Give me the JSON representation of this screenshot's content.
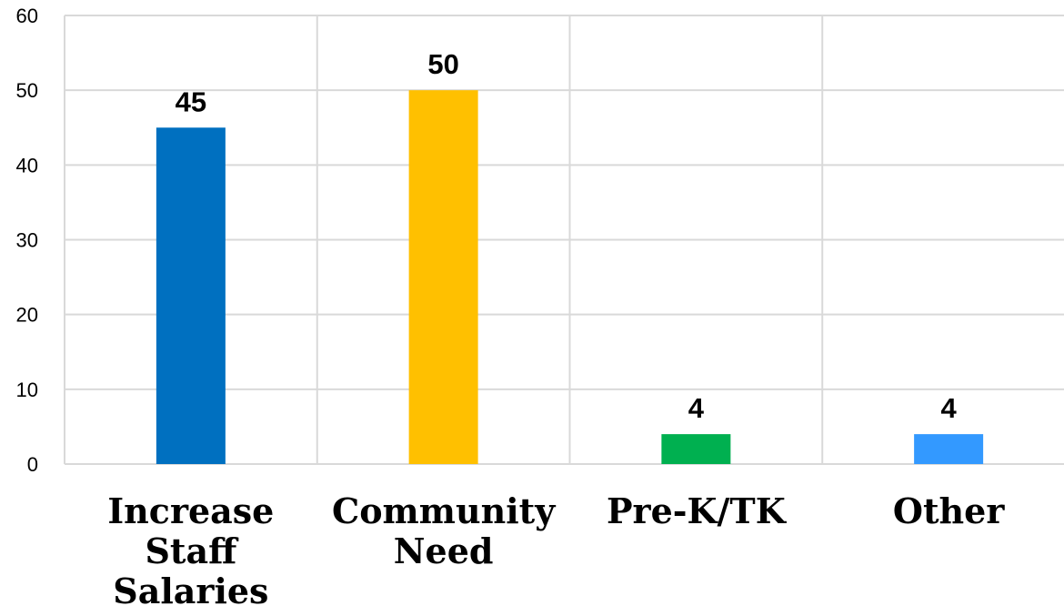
{
  "chart_data": {
    "type": "bar",
    "title": "",
    "xlabel": "",
    "ylabel": "",
    "categories": [
      [
        "Increase",
        "Staff",
        "Salaries"
      ],
      [
        "Community",
        "Need"
      ],
      [
        "Pre-K/TK"
      ],
      [
        "Other"
      ]
    ],
    "values": [
      45,
      50,
      4,
      4
    ],
    "data_labels": [
      "45",
      "50",
      "4",
      "4"
    ],
    "bar_colors": [
      "#0070c0",
      "#ffc000",
      "#00b050",
      "#3399ff"
    ],
    "ylim": [
      0,
      60
    ],
    "yticks": [
      0,
      10,
      20,
      30,
      40,
      50,
      60
    ],
    "ytick_labels": [
      "0",
      "10",
      "20",
      "30",
      "40",
      "50",
      "60"
    ],
    "grid": true,
    "legend": "none"
  }
}
